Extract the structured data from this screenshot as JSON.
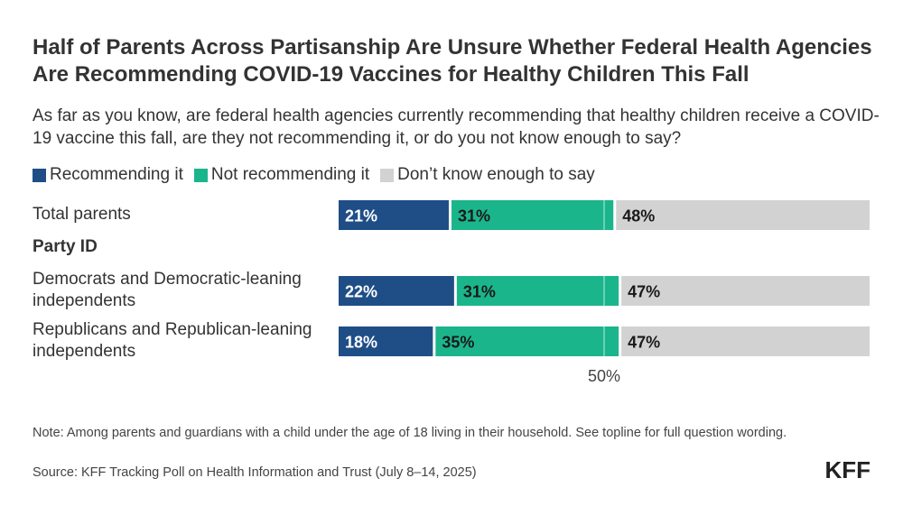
{
  "chart_data": {
    "type": "bar",
    "orientation": "horizontal-stacked",
    "title": "Half of Parents Across Partisanship Are Unsure Whether Federal Health Agencies Are Recommending COVID-19 Vaccines for Healthy Children This Fall",
    "subtitle": "As far as you know, are federal health agencies currently recommending that healthy children receive a COVID-19 vaccine this fall, are they not recommending it, or do you not know enough to say?",
    "group_label": "Party ID",
    "categories": [
      "Total parents",
      "Democrats and Democratic-leaning independents",
      "Republicans and Republican-leaning independents"
    ],
    "series": [
      {
        "name": "Recommending it",
        "color": "#1f4e87",
        "values": [
          21,
          22,
          18
        ],
        "labels": [
          "21%",
          "22%",
          "18%"
        ]
      },
      {
        "name": "Not recommending it",
        "color": "#1bb58c",
        "values": [
          31,
          31,
          35
        ],
        "labels": [
          "31%",
          "31%",
          "35%"
        ]
      },
      {
        "name": "Don’t know enough to say",
        "color": "#d2d2d2",
        "values": [
          48,
          47,
          47
        ],
        "labels": [
          "48%",
          "47%",
          "47%"
        ]
      }
    ],
    "xlim": [
      0,
      100
    ],
    "reference_line": {
      "value": 50,
      "label": "50%"
    }
  },
  "note": "Note: Among parents and guardians with a child under the age of 18 living in their household. See topline for full question wording.",
  "source": "Source: KFF Tracking Poll on Health Information and Trust (July 8–14, 2025)",
  "logo": "KFF"
}
